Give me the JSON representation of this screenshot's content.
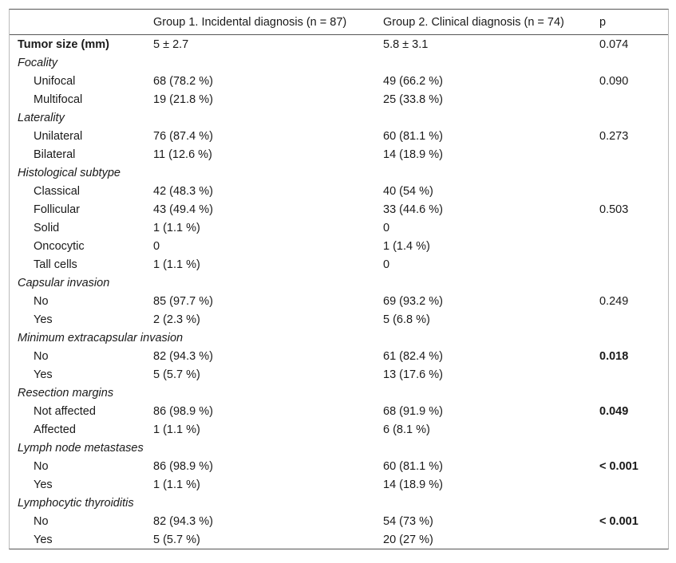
{
  "table": {
    "header": [
      "Group 1. Incidental diagnosis (n = 87)",
      "Group 2. Clinical diagnosis (n = 74)",
      "p"
    ],
    "lead_row": {
      "cells": [
        "Tumor size (mm)",
        "5 ± 2.7",
        "5.8 ± 3.1",
        "0.074"
      ],
      "bold_label": true
    },
    "sections": [
      {
        "title": "Focality",
        "bold_p": false,
        "rows": [
          [
            "Unifocal",
            "68 (78.2 %)",
            "49 (66.2 %)",
            "0.090"
          ],
          [
            "Multifocal",
            "19 (21.8 %)",
            "25 (33.8 %)",
            null
          ]
        ]
      },
      {
        "title": "Laterality",
        "bold_p": false,
        "rows": [
          [
            "Unilateral",
            "76 (87.4 %)",
            "60 (81.1 %)",
            "0.273"
          ],
          [
            "Bilateral",
            "11 (12.6 %)",
            "14 (18.9 %)",
            null
          ]
        ]
      },
      {
        "title": "Histological subtype",
        "bold_p": false,
        "rows": [
          [
            "Classical",
            "42 (48.3 %)",
            "40 (54 %)",
            null
          ],
          [
            "Follicular",
            "43 (49.4 %)",
            "33 (44.6 %)",
            "0.503"
          ],
          [
            "Solid",
            "1 (1.1 %)",
            "0",
            null
          ],
          [
            "Oncocytic",
            "0",
            "1 (1.4 %)",
            null
          ],
          [
            "Tall cells",
            "1 (1.1 %)",
            "0",
            null
          ]
        ]
      },
      {
        "title": "Capsular invasion",
        "bold_p": false,
        "rows": [
          [
            "No",
            "85 (97.7 %)",
            "69 (93.2 %)",
            "0.249"
          ],
          [
            "Yes",
            "2 (2.3 %)",
            "5 (6.8 %)",
            null
          ]
        ]
      },
      {
        "title": "Minimum extracapsular invasion",
        "bold_p": true,
        "rows": [
          [
            "No",
            "82 (94.3 %)",
            "61 (82.4 %)",
            "0.018"
          ],
          [
            "Yes",
            "5 (5.7 %)",
            "13 (17.6 %)",
            null
          ]
        ]
      },
      {
        "title": "Resection margins",
        "bold_p": true,
        "rows": [
          [
            "Not affected",
            "86 (98.9 %)",
            "68 (91.9 %)",
            "0.049"
          ],
          [
            "Affected",
            "1 (1.1 %)",
            "6 (8.1 %)",
            null
          ]
        ]
      },
      {
        "title": "Lymph node metastases",
        "bold_p": true,
        "rows": [
          [
            "No",
            "86 (98.9 %)",
            "60 (81.1 %)",
            "< 0.001"
          ],
          [
            "Yes",
            "1 (1.1 %)",
            "14 (18.9 %)",
            null
          ]
        ]
      },
      {
        "title": "Lymphocytic thyroiditis",
        "bold_p": true,
        "rows": [
          [
            "No",
            "82 (94.3 %)",
            "54 (73 %)",
            "< 0.001"
          ],
          [
            "Yes",
            "5 (5.7 %)",
            "20 (27 %)",
            null
          ]
        ]
      }
    ]
  }
}
